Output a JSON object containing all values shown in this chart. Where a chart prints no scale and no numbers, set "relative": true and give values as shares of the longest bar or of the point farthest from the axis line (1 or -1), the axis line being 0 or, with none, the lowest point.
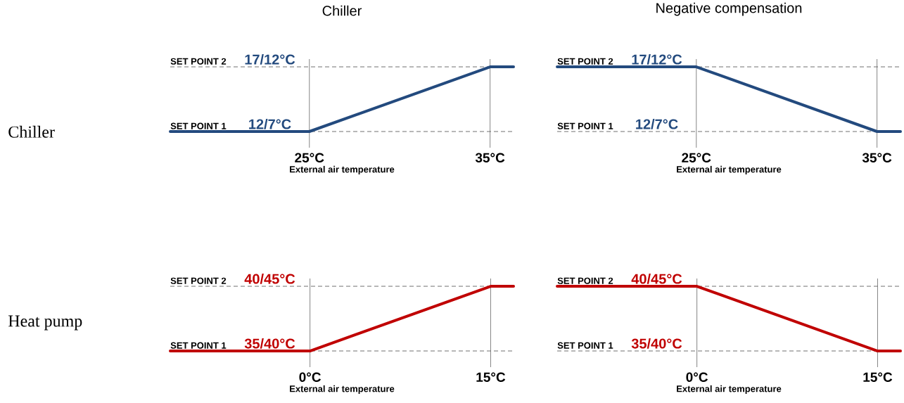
{
  "chart_data": [
    {
      "type": "line",
      "title": "Chiller",
      "ylabel": "Chiller",
      "xlabel": "External air temperature",
      "relative": true,
      "x": [
        17.3,
        25,
        35,
        36.3
      ],
      "xlim": [
        17.3,
        36.3
      ],
      "xticks": [
        {
          "value": 25,
          "label": "25°C"
        },
        {
          "value": 35,
          "label": "35°C"
        }
      ],
      "line_style": "solid",
      "series": [
        {
          "color": "#234a7e",
          "values": [
            0,
            0,
            1,
            1
          ]
        }
      ],
      "ref_lines": [
        {
          "axis": "y",
          "value": 1,
          "label": "SET POINT 2",
          "line_style": "dashed"
        },
        {
          "axis": "y",
          "value": 0,
          "label": "SET POINT 1",
          "line_style": "dashed"
        },
        {
          "axis": "x",
          "value": 25
        },
        {
          "axis": "x",
          "value": 35
        }
      ],
      "annotations": [
        {
          "text": "17/12°C",
          "y": 1
        },
        {
          "text": "12/7°C",
          "y": 0
        }
      ]
    },
    {
      "type": "line",
      "title": "Negative compensation",
      "xlabel": "External air temperature",
      "relative": true,
      "x": [
        17.3,
        25,
        35,
        36.3
      ],
      "xlim": [
        17.3,
        36.3
      ],
      "xticks": [
        {
          "value": 25,
          "label": "25°C"
        },
        {
          "value": 35,
          "label": "35°C"
        }
      ],
      "line_style": "solid",
      "series": [
        {
          "color": "#234a7e",
          "values": [
            1,
            1,
            0,
            0
          ]
        }
      ],
      "ref_lines": [
        {
          "axis": "y",
          "value": 1,
          "label": "SET POINT 2",
          "line_style": "dashed"
        },
        {
          "axis": "y",
          "value": 0,
          "label": "SET POINT 1",
          "line_style": "dashed"
        },
        {
          "axis": "x",
          "value": 25
        },
        {
          "axis": "x",
          "value": 35
        }
      ],
      "annotations": [
        {
          "text": "17/12°C",
          "y": 1
        },
        {
          "text": "12/7°C",
          "y": 0
        }
      ]
    },
    {
      "type": "line",
      "ylabel": "Heat pump",
      "xlabel": "External air temperature",
      "relative": true,
      "x": [
        -11.6,
        0,
        15,
        16.9
      ],
      "xlim": [
        -11.6,
        16.9
      ],
      "xticks": [
        {
          "value": 0,
          "label": "0°C"
        },
        {
          "value": 15,
          "label": "15°C"
        }
      ],
      "line_style": "solid",
      "series": [
        {
          "color": "#c00000",
          "values": [
            0,
            0,
            1,
            1
          ]
        }
      ],
      "ref_lines": [
        {
          "axis": "y",
          "value": 1,
          "label": "SET POINT 2",
          "line_style": "dashed"
        },
        {
          "axis": "y",
          "value": 0,
          "label": "SET POINT 1",
          "line_style": "dashed"
        },
        {
          "axis": "x",
          "value": 0
        },
        {
          "axis": "x",
          "value": 15
        }
      ],
      "annotations": [
        {
          "text": "40/45°C",
          "y": 1
        },
        {
          "text": "35/40°C",
          "y": 0
        }
      ]
    },
    {
      "type": "line",
      "xlabel": "External air temperature",
      "relative": true,
      "x": [
        -11.6,
        0,
        15,
        16.9
      ],
      "xlim": [
        -11.6,
        16.9
      ],
      "xticks": [
        {
          "value": 0,
          "label": "0°C"
        },
        {
          "value": 15,
          "label": "15°C"
        }
      ],
      "line_style": "solid",
      "series": [
        {
          "color": "#c00000",
          "values": [
            1,
            1,
            0,
            0
          ]
        }
      ],
      "ref_lines": [
        {
          "axis": "y",
          "value": 1,
          "label": "SET POINT 2",
          "line_style": "dashed"
        },
        {
          "axis": "y",
          "value": 0,
          "label": "SET POINT 1",
          "line_style": "dashed"
        },
        {
          "axis": "x",
          "value": 0
        },
        {
          "axis": "x",
          "value": 15
        }
      ],
      "annotations": [
        {
          "text": "40/45°C",
          "y": 1
        },
        {
          "text": "35/40°C",
          "y": 0
        }
      ]
    }
  ]
}
